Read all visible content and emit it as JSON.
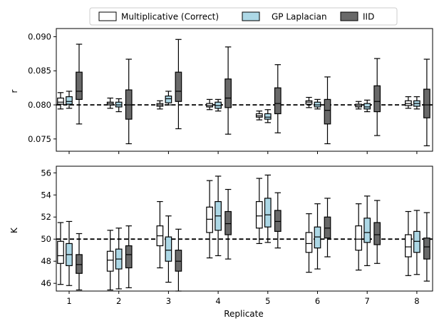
{
  "chart_data": [
    {
      "type": "boxplot",
      "ylabel": "r",
      "xlabel": "",
      "ylim": [
        0.0732,
        0.0912
      ],
      "yticks": [
        0.075,
        0.08,
        0.085,
        0.09
      ],
      "ytick_labels": [
        "0.075",
        "0.080",
        "0.085",
        "0.090"
      ],
      "reference_line": 0.08,
      "categories": [
        "1",
        "2",
        "3",
        "4",
        "5",
        "6",
        "7",
        "8"
      ],
      "series": [
        {
          "name": "Multiplicative (Correct)",
          "boxes": [
            {
              "whislo": 0.0794,
              "q1": 0.0801,
              "median": 0.0804,
              "q3": 0.081,
              "whishi": 0.0818
            },
            {
              "whislo": 0.0795,
              "q1": 0.08,
              "median": 0.0802,
              "q3": 0.0804,
              "whishi": 0.081
            },
            {
              "whislo": 0.0794,
              "q1": 0.0798,
              "median": 0.08,
              "q3": 0.0802,
              "whishi": 0.0806
            },
            {
              "whislo": 0.0793,
              "q1": 0.0797,
              "median": 0.0799,
              "q3": 0.0802,
              "whishi": 0.0808
            },
            {
              "whislo": 0.0778,
              "q1": 0.0782,
              "median": 0.0784,
              "q3": 0.0787,
              "whishi": 0.0791
            },
            {
              "whislo": 0.0796,
              "q1": 0.0801,
              "median": 0.0804,
              "q3": 0.0806,
              "whishi": 0.0811
            },
            {
              "whislo": 0.0794,
              "q1": 0.0797,
              "median": 0.0799,
              "q3": 0.0801,
              "whishi": 0.0805
            },
            {
              "whislo": 0.0795,
              "q1": 0.0799,
              "median": 0.0802,
              "q3": 0.0806,
              "whishi": 0.0812
            }
          ]
        },
        {
          "name": "GP Laplacian",
          "boxes": [
            {
              "whislo": 0.0795,
              "q1": 0.0801,
              "median": 0.0805,
              "q3": 0.0812,
              "whishi": 0.082
            },
            {
              "whislo": 0.079,
              "q1": 0.0797,
              "median": 0.08,
              "q3": 0.0804,
              "whishi": 0.0809
            },
            {
              "whislo": 0.08,
              "q1": 0.0803,
              "median": 0.0809,
              "q3": 0.0813,
              "whishi": 0.082
            },
            {
              "whislo": 0.0791,
              "q1": 0.0795,
              "median": 0.0799,
              "q3": 0.0804,
              "whishi": 0.0808
            },
            {
              "whislo": 0.0774,
              "q1": 0.0779,
              "median": 0.0782,
              "q3": 0.0787,
              "whishi": 0.0793
            },
            {
              "whislo": 0.0794,
              "q1": 0.0797,
              "median": 0.08,
              "q3": 0.0804,
              "whishi": 0.0808
            },
            {
              "whislo": 0.079,
              "q1": 0.0794,
              "median": 0.0797,
              "q3": 0.0802,
              "whishi": 0.0807
            },
            {
              "whislo": 0.0794,
              "q1": 0.0798,
              "median": 0.0802,
              "q3": 0.0806,
              "whishi": 0.0812
            }
          ]
        },
        {
          "name": "IID",
          "boxes": [
            {
              "whislo": 0.0772,
              "q1": 0.0808,
              "median": 0.082,
              "q3": 0.0848,
              "whishi": 0.0889
            },
            {
              "whislo": 0.0743,
              "q1": 0.0779,
              "median": 0.08,
              "q3": 0.0822,
              "whishi": 0.0867
            },
            {
              "whislo": 0.0765,
              "q1": 0.0805,
              "median": 0.082,
              "q3": 0.0848,
              "whishi": 0.0896
            },
            {
              "whislo": 0.0757,
              "q1": 0.0796,
              "median": 0.081,
              "q3": 0.0838,
              "whishi": 0.0885
            },
            {
              "whislo": 0.0759,
              "q1": 0.0787,
              "median": 0.0802,
              "q3": 0.0825,
              "whishi": 0.0859
            },
            {
              "whislo": 0.0743,
              "q1": 0.0772,
              "median": 0.0792,
              "q3": 0.0808,
              "whishi": 0.0841
            },
            {
              "whislo": 0.0755,
              "q1": 0.079,
              "median": 0.0805,
              "q3": 0.0828,
              "whishi": 0.0868
            },
            {
              "whislo": 0.074,
              "q1": 0.0781,
              "median": 0.08,
              "q3": 0.0823,
              "whishi": 0.0867
            }
          ]
        }
      ]
    },
    {
      "type": "boxplot",
      "ylabel": "K",
      "xlabel": "Replicate",
      "ylim": [
        45.3,
        56.6
      ],
      "yticks": [
        46,
        48,
        50,
        52,
        54,
        56
      ],
      "ytick_labels": [
        "46",
        "48",
        "50",
        "52",
        "54",
        "56"
      ],
      "reference_line": 50,
      "categories": [
        "1",
        "2",
        "3",
        "4",
        "5",
        "6",
        "7",
        "8"
      ],
      "series": [
        {
          "name": "Multiplicative (Correct)",
          "boxes": [
            {
              "whislo": 45.9,
              "q1": 47.8,
              "median": 48.5,
              "q3": 49.8,
              "whishi": 51.5
            },
            {
              "whislo": 45.4,
              "q1": 47.1,
              "median": 48.1,
              "q3": 48.9,
              "whishi": 50.8
            },
            {
              "whislo": 47.4,
              "q1": 49.4,
              "median": 50.3,
              "q3": 51.2,
              "whishi": 53.4
            },
            {
              "whislo": 48.3,
              "q1": 50.6,
              "median": 51.8,
              "q3": 52.9,
              "whishi": 55.3
            },
            {
              "whislo": 49.6,
              "q1": 51.0,
              "median": 52.1,
              "q3": 53.4,
              "whishi": 55.5
            },
            {
              "whislo": 47.0,
              "q1": 48.8,
              "median": 49.6,
              "q3": 50.6,
              "whishi": 52.3
            },
            {
              "whislo": 47.2,
              "q1": 49.0,
              "median": 50.0,
              "q3": 51.2,
              "whishi": 53.2
            },
            {
              "whislo": 46.7,
              "q1": 48.4,
              "median": 49.3,
              "q3": 50.4,
              "whishi": 52.5
            }
          ]
        },
        {
          "name": "GP Laplacian",
          "boxes": [
            {
              "whislo": 45.8,
              "q1": 47.6,
              "median": 48.6,
              "q3": 49.6,
              "whishi": 51.6
            },
            {
              "whislo": 45.5,
              "q1": 47.3,
              "median": 48.2,
              "q3": 49.1,
              "whishi": 51.0
            },
            {
              "whislo": 46.1,
              "q1": 48.0,
              "median": 49.0,
              "q3": 50.2,
              "whishi": 52.1
            },
            {
              "whislo": 48.5,
              "q1": 50.8,
              "median": 52.1,
              "q3": 53.4,
              "whishi": 55.7
            },
            {
              "whislo": 49.7,
              "q1": 51.1,
              "median": 52.2,
              "q3": 53.7,
              "whishi": 55.8
            },
            {
              "whislo": 47.3,
              "q1": 49.2,
              "median": 50.2,
              "q3": 51.1,
              "whishi": 53.2
            },
            {
              "whislo": 47.6,
              "q1": 49.7,
              "median": 50.6,
              "q3": 51.9,
              "whishi": 53.9
            },
            {
              "whislo": 46.8,
              "q1": 48.8,
              "median": 49.8,
              "q3": 50.7,
              "whishi": 52.6
            }
          ]
        },
        {
          "name": "IID",
          "boxes": [
            {
              "whislo": 45.4,
              "q1": 46.9,
              "median": 47.7,
              "q3": 48.6,
              "whishi": 50.5
            },
            {
              "whislo": 45.6,
              "q1": 47.4,
              "median": 48.6,
              "q3": 49.4,
              "whishi": 51.2
            },
            {
              "whislo": 45.3,
              "q1": 47.1,
              "median": 48.0,
              "q3": 49.0,
              "whishi": 50.9
            },
            {
              "whislo": 48.2,
              "q1": 50.4,
              "median": 51.4,
              "q3": 52.5,
              "whishi": 54.5
            },
            {
              "whislo": 49.2,
              "q1": 50.7,
              "median": 51.6,
              "q3": 52.6,
              "whishi": 54.2
            },
            {
              "whislo": 48.4,
              "q1": 50.1,
              "median": 51.0,
              "q3": 52.0,
              "whishi": 53.7
            },
            {
              "whislo": 47.8,
              "q1": 49.5,
              "median": 50.4,
              "q3": 51.5,
              "whishi": 53.5
            },
            {
              "whislo": 46.2,
              "q1": 48.2,
              "median": 49.3,
              "q3": 50.1,
              "whishi": 52.4
            }
          ]
        }
      ]
    }
  ],
  "legend": {
    "placement": "top-center",
    "entries": [
      {
        "label": "Multiplicative (Correct)",
        "color": "#ffffff"
      },
      {
        "label": "GP Laplacian",
        "color": "#add8e6"
      },
      {
        "label": "IID",
        "color": "#696969"
      }
    ]
  }
}
